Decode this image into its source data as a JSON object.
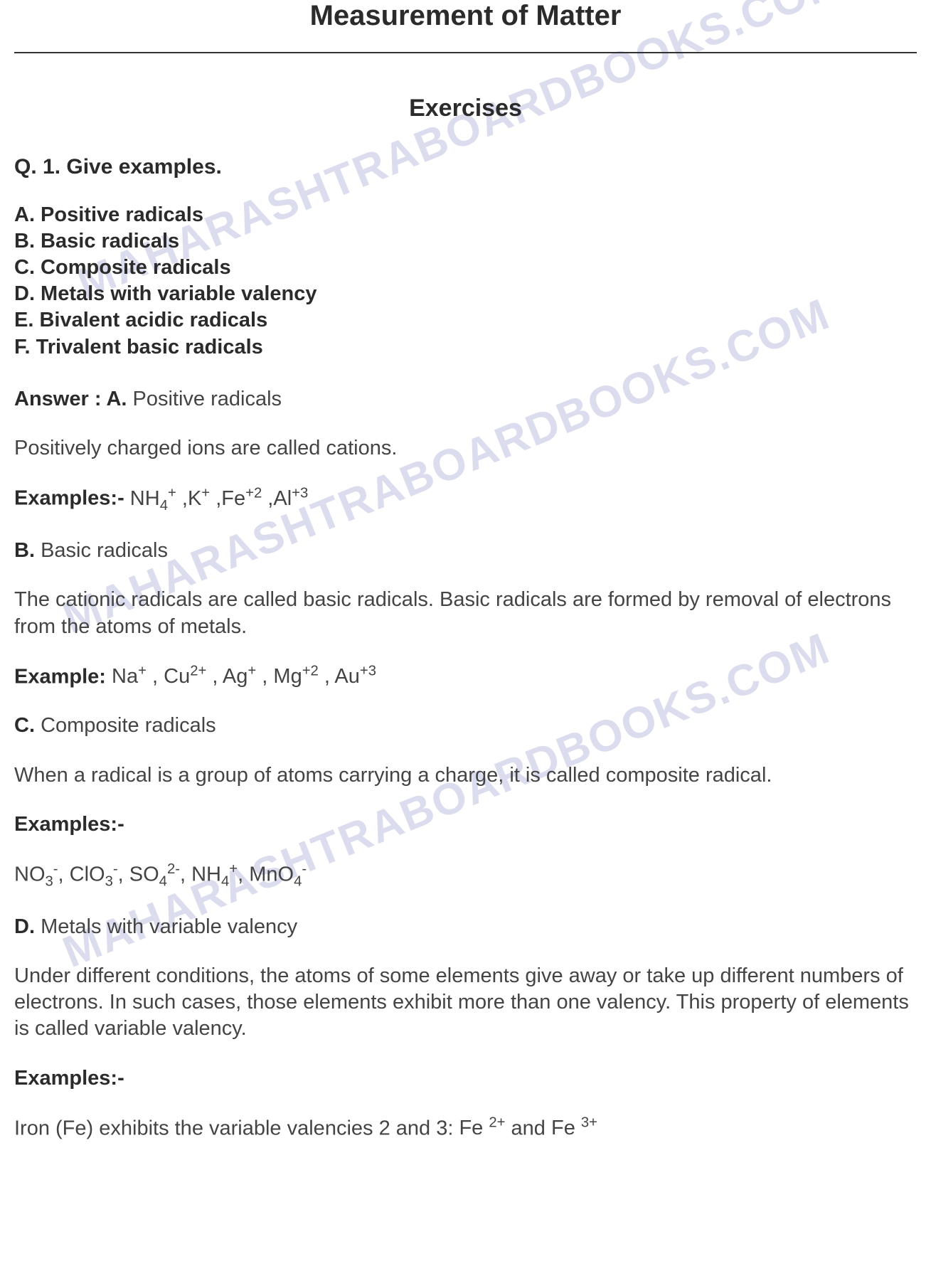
{
  "watermark_text": "MAHARASHTRABOARDBOOKS.COM",
  "colors": {
    "text_primary": "#2b2b2b",
    "text_body": "#444444",
    "watermark": "rgba(90,100,180,0.22)",
    "background": "#ffffff",
    "rule": "#333333"
  },
  "typography": {
    "title_fontsize": 40,
    "subtitle_fontsize": 34,
    "heading_fontsize": 30,
    "body_fontsize": 29,
    "font_family": "Arial"
  },
  "title": "Measurement of Matter",
  "subtitle": "Exercises",
  "question": {
    "number": "Q. 1.",
    "prompt": "Give examples.",
    "options": [
      "A. Positive radicals",
      "B. Basic radicals",
      "C. Composite radicals",
      "D. Metals with variable valency",
      "E. Bivalent acidic radicals",
      "F. Trivalent basic radicals"
    ]
  },
  "answers": {
    "A": {
      "label": "Answer : A.",
      "title": "Positive radicals",
      "definition": "Positively charged ions are called cations.",
      "examples_label": "Examples:-",
      "examples_items": [
        {
          "base": "NH",
          "sub": "4",
          "sup": "+"
        },
        {
          "base": "K",
          "sub": "",
          "sup": "+"
        },
        {
          "base": "Fe",
          "sub": "",
          "sup": "+2"
        },
        {
          "base": "Al",
          "sub": "",
          "sup": "+3"
        }
      ]
    },
    "B": {
      "label": "B.",
      "title": "Basic radicals",
      "definition": "The cationic radicals are called basic radicals. Basic radicals are formed by removal of electrons from the atoms of metals.",
      "examples_label": "Example:",
      "examples_items": [
        {
          "base": "Na",
          "sub": "",
          "sup": "+"
        },
        {
          "base": "Cu",
          "sub": "",
          "sup": "2+"
        },
        {
          "base": "Ag",
          "sub": "",
          "sup": "+"
        },
        {
          "base": "Mg",
          "sub": "",
          "sup": "+2"
        },
        {
          "base": "Au",
          "sub": "",
          "sup": "+3"
        }
      ]
    },
    "C": {
      "label": "C.",
      "title": "Composite radicals",
      "definition": "When a radical is a group of atoms carrying a charge, it is called composite radical.",
      "examples_label": "Examples:-",
      "examples_items": [
        {
          "base": "NO",
          "sub": "3",
          "sup": "-"
        },
        {
          "base": "ClO",
          "sub": "3",
          "sup": "-"
        },
        {
          "base": "SO",
          "sub": "4",
          "sup": "2-"
        },
        {
          "base": "NH",
          "sub": "4",
          "sup": "+"
        },
        {
          "base": "MnO",
          "sub": "4",
          "sup": "-"
        }
      ]
    },
    "D": {
      "label": "D.",
      "title": "Metals with variable valency",
      "definition": "Under different conditions, the atoms of some elements give away or take up different numbers of electrons. In such cases, those elements exhibit more than one valency. This property of elements is called variable valency.",
      "examples_label": "Examples:-",
      "example_text_prefix": "Iron (Fe) exhibits the variable valencies 2 and 3: ",
      "example_ions": [
        {
          "base": "Fe",
          "sup": "2+"
        },
        {
          "base": "Fe",
          "sup": "3+"
        }
      ],
      "example_joiner": " and "
    }
  }
}
